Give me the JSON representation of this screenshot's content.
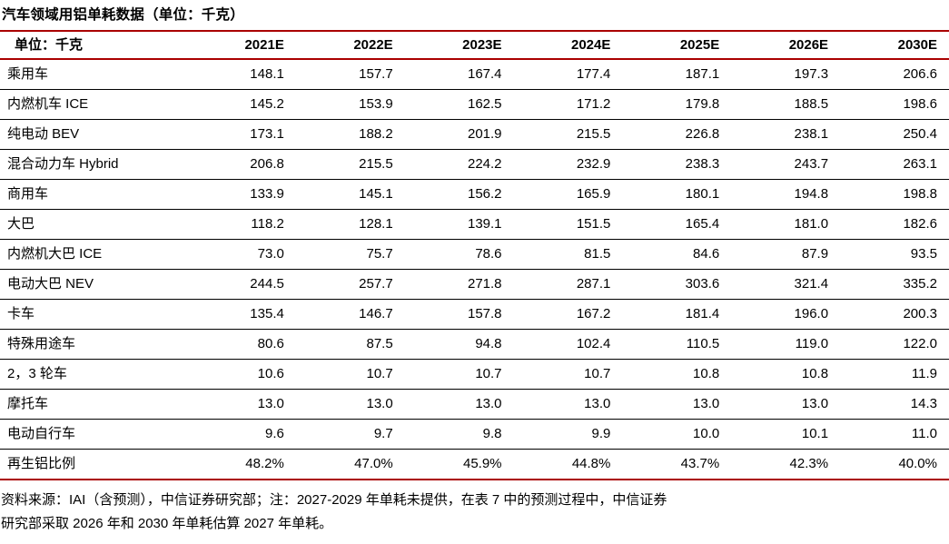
{
  "title": "汽车领域用铝单耗数据（单位：千克）",
  "table": {
    "columns": [
      "单位：千克",
      "2021E",
      "2022E",
      "2023E",
      "2024E",
      "2025E",
      "2026E",
      "2030E"
    ],
    "rows": [
      {
        "label": "乘用车",
        "values": [
          "148.1",
          "157.7",
          "167.4",
          "177.4",
          "187.1",
          "197.3",
          "206.6"
        ]
      },
      {
        "label": "内燃机车 ICE",
        "values": [
          "145.2",
          "153.9",
          "162.5",
          "171.2",
          "179.8",
          "188.5",
          "198.6"
        ]
      },
      {
        "label": "纯电动 BEV",
        "values": [
          "173.1",
          "188.2",
          "201.9",
          "215.5",
          "226.8",
          "238.1",
          "250.4"
        ]
      },
      {
        "label": "混合动力车 Hybrid",
        "values": [
          "206.8",
          "215.5",
          "224.2",
          "232.9",
          "238.3",
          "243.7",
          "263.1"
        ]
      },
      {
        "label": "商用车",
        "values": [
          "133.9",
          "145.1",
          "156.2",
          "165.9",
          "180.1",
          "194.8",
          "198.8"
        ]
      },
      {
        "label": "大巴",
        "values": [
          "118.2",
          "128.1",
          "139.1",
          "151.5",
          "165.4",
          "181.0",
          "182.6"
        ]
      },
      {
        "label": "内燃机大巴 ICE",
        "values": [
          "73.0",
          "75.7",
          "78.6",
          "81.5",
          "84.6",
          "87.9",
          "93.5"
        ]
      },
      {
        "label": "电动大巴 NEV",
        "values": [
          "244.5",
          "257.7",
          "271.8",
          "287.1",
          "303.6",
          "321.4",
          "335.2"
        ]
      },
      {
        "label": "卡车",
        "values": [
          "135.4",
          "146.7",
          "157.8",
          "167.2",
          "181.4",
          "196.0",
          "200.3"
        ]
      },
      {
        "label": "特殊用途车",
        "values": [
          "80.6",
          "87.5",
          "94.8",
          "102.4",
          "110.5",
          "119.0",
          "122.0"
        ]
      },
      {
        "label": "2，3 轮车",
        "values": [
          "10.6",
          "10.7",
          "10.7",
          "10.7",
          "10.8",
          "10.8",
          "11.9"
        ]
      },
      {
        "label": "摩托车",
        "values": [
          "13.0",
          "13.0",
          "13.0",
          "13.0",
          "13.0",
          "13.0",
          "14.3"
        ]
      },
      {
        "label": "电动自行车",
        "values": [
          "9.6",
          "9.7",
          "9.8",
          "9.9",
          "10.0",
          "10.1",
          "11.0"
        ]
      },
      {
        "label": "再生铝比例",
        "values": [
          "48.2%",
          "47.0%",
          "45.9%",
          "44.8%",
          "43.7%",
          "42.3%",
          "40.0%"
        ]
      }
    ]
  },
  "footnote": {
    "line1": "资料来源：IAI（含预测），中信证券研究部；注：2027-2029 年单耗未提供，在表 7 中的预测过程中，中信证券",
    "line2": "研究部采取 2026 年和 2030 年单耗估算 2027 年单耗。"
  },
  "colors": {
    "accent_line": "#AA0000",
    "row_divider": "#000000",
    "text": "#000000",
    "background": "#FFFFFF"
  }
}
